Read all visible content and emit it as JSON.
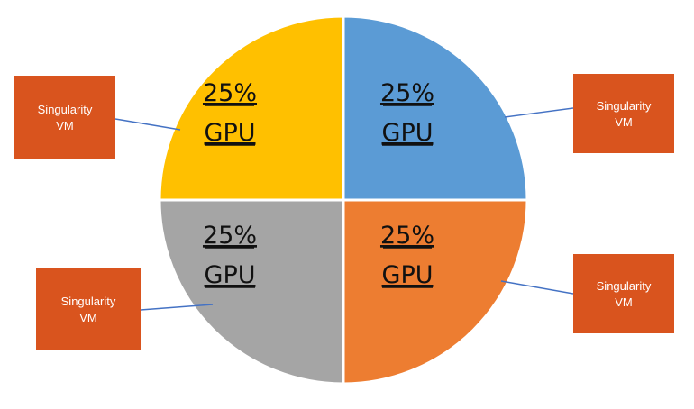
{
  "chart_data": {
    "type": "pie",
    "title": "",
    "slices": [
      {
        "value": 25,
        "line1": "25%",
        "line2": "GPU",
        "color": "#5B9BD5"
      },
      {
        "value": 25,
        "line1": "25%",
        "line2": "GPU",
        "color": "#ED7D31"
      },
      {
        "value": 25,
        "line1": "25%",
        "line2": "GPU",
        "color": "#A5A5A5"
      },
      {
        "value": 25,
        "line1": "25%",
        "line2": "GPU",
        "color": "#FFC000"
      }
    ],
    "callouts": [
      {
        "line1": "Singularity",
        "line2": "VM",
        "color": "#D9541E"
      },
      {
        "line1": "Singularity",
        "line2": "VM",
        "color": "#D9541E"
      },
      {
        "line1": "Singularity",
        "line2": "VM",
        "color": "#D9541E"
      },
      {
        "line1": "Singularity",
        "line2": "VM",
        "color": "#D9541E"
      }
    ],
    "connector_color": "#4472C4",
    "separator_color": "#ffffff"
  }
}
